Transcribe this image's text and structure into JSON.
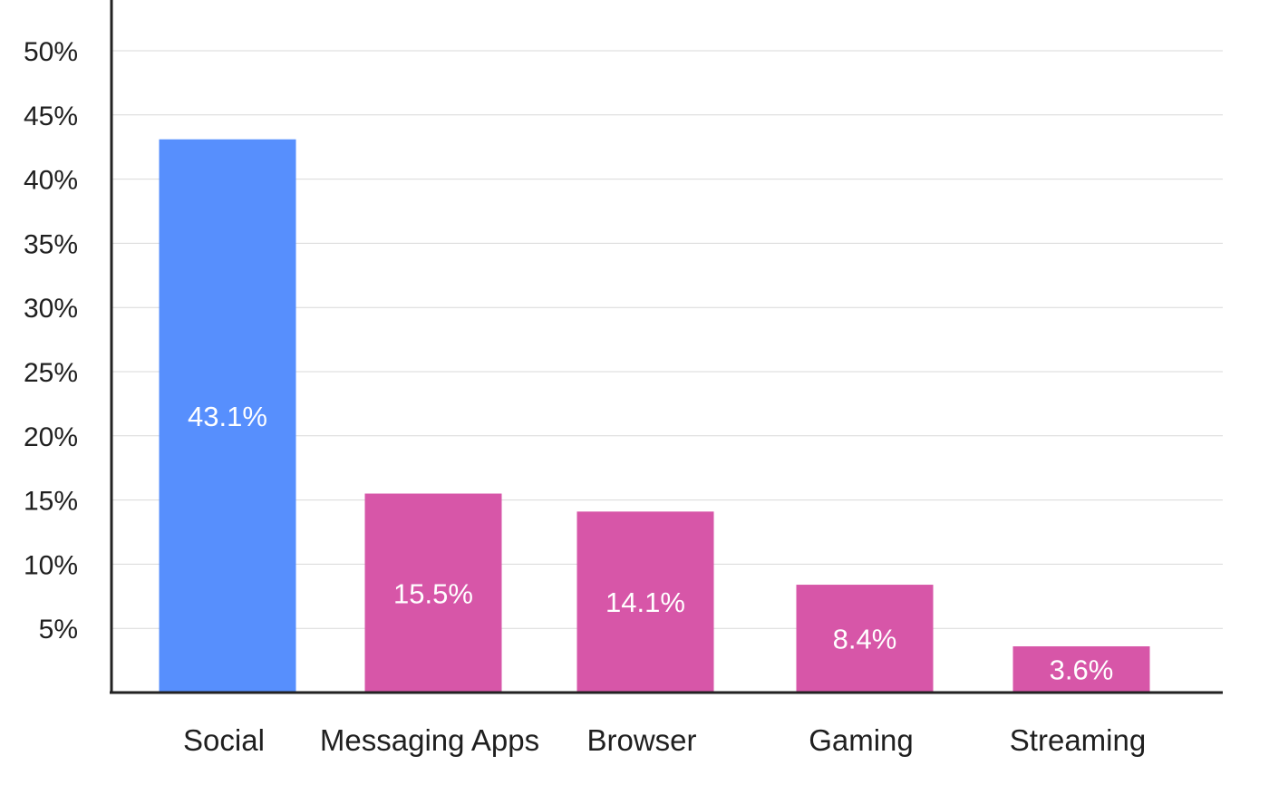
{
  "chart_data": {
    "type": "bar",
    "title": "",
    "xlabel": "",
    "ylabel": "",
    "categories": [
      "Social",
      "Messaging Apps",
      "Browser",
      "Gaming",
      "Streaming"
    ],
    "values": [
      43.1,
      15.5,
      14.1,
      8.4,
      3.6
    ],
    "value_labels": [
      "43.1%",
      "15.5%",
      "14.1%",
      "8.4%",
      "3.6%"
    ],
    "bar_colors": [
      "#578ffd",
      "#d756a8",
      "#d756a8",
      "#d756a8",
      "#d756a8"
    ],
    "ylim": [
      0,
      52
    ],
    "yticks": [
      5,
      10,
      15,
      20,
      25,
      30,
      35,
      40,
      45,
      50
    ],
    "ytick_labels": [
      "5%",
      "10%",
      "15%",
      "20%",
      "25%",
      "30%",
      "35%",
      "40%",
      "45%",
      "50%"
    ],
    "grid": true,
    "legend": "none"
  }
}
